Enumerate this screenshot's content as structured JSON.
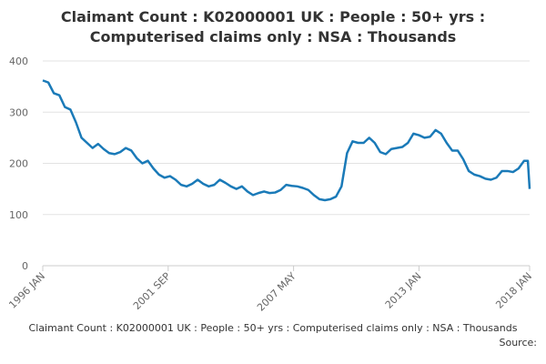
{
  "chart_data": {
    "type": "line",
    "title": [
      "Claimant Count : K02000001 UK : People : 50+ yrs :",
      "Computerised claims only : NSA : Thousands"
    ],
    "footer_title": "Claimant Count : K02000001 UK : People : 50+ yrs : Computerised claims only : NSA : Thousands",
    "source": "Source:",
    "x": [
      1996.0,
      1996.25,
      1996.5,
      1996.75,
      1997.0,
      1997.25,
      1997.5,
      1997.75,
      1998.0,
      1998.25,
      1998.5,
      1998.75,
      1999.0,
      1999.25,
      1999.5,
      1999.75,
      2000.0,
      2000.25,
      2000.5,
      2000.75,
      2001.0,
      2001.25,
      2001.5,
      2001.75,
      2002.0,
      2002.25,
      2002.5,
      2002.75,
      2003.0,
      2003.25,
      2003.5,
      2003.75,
      2004.0,
      2004.25,
      2004.5,
      2004.75,
      2005.0,
      2005.25,
      2005.5,
      2005.75,
      2006.0,
      2006.25,
      2006.5,
      2006.75,
      2007.0,
      2007.25,
      2007.5,
      2007.75,
      2008.0,
      2008.25,
      2008.5,
      2008.75,
      2009.0,
      2009.25,
      2009.5,
      2009.75,
      2010.0,
      2010.25,
      2010.5,
      2010.75,
      2011.0,
      2011.25,
      2011.5,
      2011.75,
      2012.0,
      2012.25,
      2012.5,
      2012.75,
      2013.0,
      2013.25,
      2013.5,
      2013.75,
      2014.0,
      2014.25,
      2014.5,
      2014.75,
      2015.0,
      2015.25,
      2015.5,
      2015.75,
      2016.0,
      2016.25,
      2016.5,
      2016.75,
      2017.0,
      2017.25,
      2017.5,
      2017.75,
      2017.92,
      2018.0
    ],
    "series": [
      {
        "name": "50+ yrs",
        "color": "#1a7ab8",
        "values": [
          362,
          358,
          337,
          333,
          310,
          305,
          280,
          250,
          240,
          230,
          238,
          228,
          220,
          218,
          222,
          230,
          225,
          210,
          200,
          205,
          190,
          178,
          172,
          175,
          168,
          158,
          155,
          160,
          168,
          160,
          155,
          158,
          168,
          162,
          155,
          150,
          155,
          145,
          138,
          142,
          145,
          142,
          143,
          148,
          158,
          156,
          155,
          152,
          148,
          138,
          130,
          128,
          130,
          135,
          155,
          220,
          243,
          240,
          240,
          250,
          240,
          222,
          218,
          228,
          230,
          232,
          240,
          258,
          255,
          250,
          252,
          265,
          258,
          240,
          225,
          225,
          208,
          185,
          178,
          175,
          170,
          168,
          172,
          185,
          185,
          183,
          190,
          205,
          205,
          150
        ]
      }
    ],
    "xlim": [
      1996,
      2018
    ],
    "xticks": [
      {
        "value": 1996,
        "label": "1996 JAN"
      },
      {
        "value": 2001.667,
        "label": "2001 SEP"
      },
      {
        "value": 2007.333,
        "label": "2007 MAY"
      },
      {
        "value": 2013,
        "label": "2013 JAN"
      },
      {
        "value": 2018,
        "label": "2018 JAN"
      }
    ],
    "ylim": [
      0,
      400
    ],
    "yticks": [
      0,
      100,
      200,
      300,
      400
    ],
    "grid": true
  }
}
